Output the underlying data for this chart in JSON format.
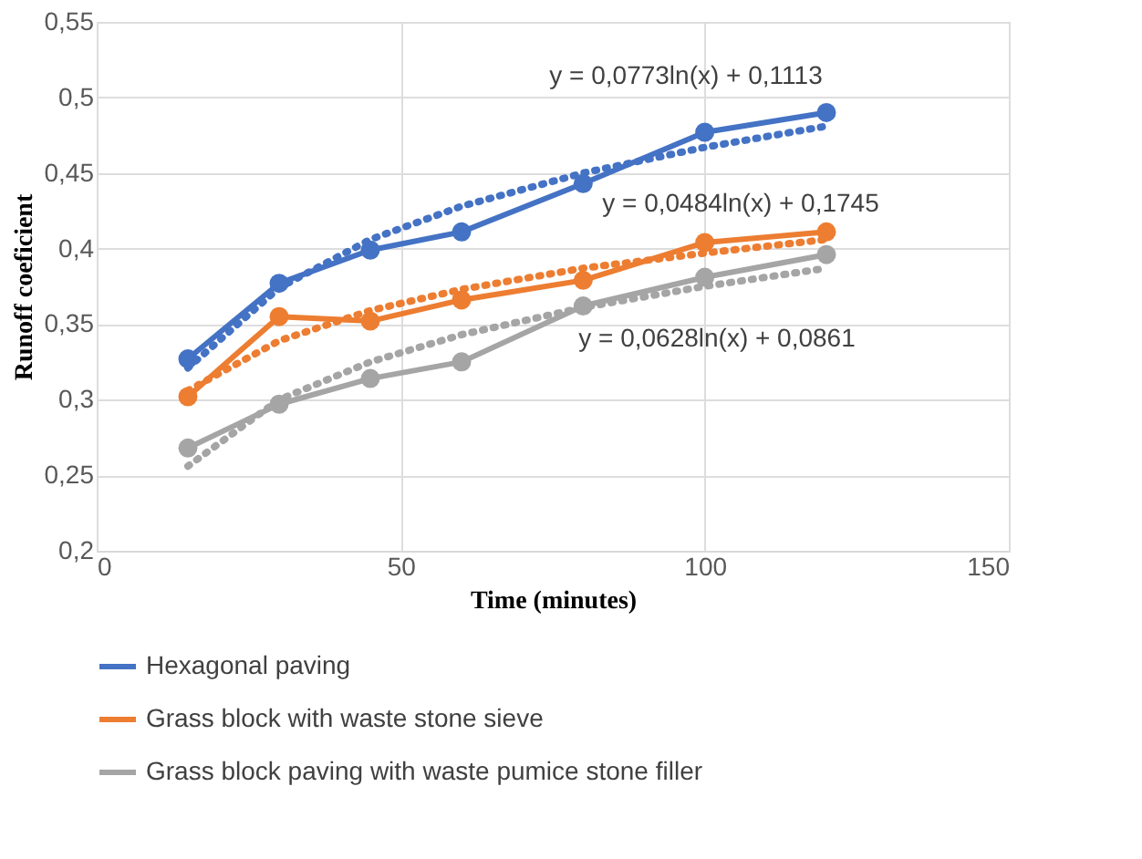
{
  "chart_data": {
    "type": "line",
    "xlabel": "Time  (minutes)",
    "ylabel": "Runoff coeficient",
    "xlim": [
      0,
      150
    ],
    "xticks": [
      0,
      50,
      100,
      150
    ],
    "ylim": [
      0.2,
      0.55
    ],
    "yticks": [
      {
        "value": 0.2,
        "label": "0,2"
      },
      {
        "value": 0.25,
        "label": "0,25"
      },
      {
        "value": 0.3,
        "label": "0,3"
      },
      {
        "value": 0.35,
        "label": "0,35"
      },
      {
        "value": 0.4,
        "label": "0,4"
      },
      {
        "value": 0.45,
        "label": "0,45"
      },
      {
        "value": 0.5,
        "label": "0,5"
      },
      {
        "value": 0.55,
        "label": "0,55"
      }
    ],
    "grid": true,
    "legend": "bottom",
    "series": [
      {
        "name": "Hexagonal paving",
        "color": "#4472c4",
        "marker": "circle",
        "line_style": "solid",
        "x": [
          15,
          30,
          45,
          60,
          80,
          100,
          120
        ],
        "values": [
          0.327,
          0.377,
          0.399,
          0.411,
          0.443,
          0.477,
          0.49
        ]
      },
      {
        "name": "Grass block with waste stone sieve",
        "color": "#ed7d31",
        "marker": "circle",
        "line_style": "solid",
        "x": [
          15,
          30,
          45,
          60,
          80,
          100,
          120
        ],
        "values": [
          0.302,
          0.355,
          0.352,
          0.366,
          0.379,
          0.404,
          0.411
        ]
      },
      {
        "name": "Grass block paving with waste pumice stone filler",
        "color": "#a5a5a5",
        "marker": "circle",
        "line_style": "solid",
        "x": [
          15,
          30,
          45,
          60,
          80,
          100,
          120
        ],
        "values": [
          0.268,
          0.297,
          0.314,
          0.325,
          0.362,
          0.381,
          0.396
        ]
      },
      {
        "color": "#4472c4",
        "marker": "none",
        "line_style": "dotted",
        "x": [
          15,
          30,
          45,
          60,
          80,
          100,
          120
        ],
        "values": [
          0.321,
          0.374,
          0.406,
          0.428,
          0.45,
          0.467,
          0.481
        ]
      },
      {
        "color": "#ed7d31",
        "marker": "none",
        "line_style": "dotted",
        "x": [
          15,
          30,
          45,
          60,
          80,
          100,
          120
        ],
        "values": [
          0.306,
          0.339,
          0.359,
          0.373,
          0.387,
          0.397,
          0.406
        ]
      },
      {
        "color": "#a5a5a5",
        "marker": "none",
        "line_style": "dotted",
        "x": [
          15,
          30,
          45,
          60,
          80,
          100,
          120
        ],
        "values": [
          0.256,
          0.3,
          0.325,
          0.343,
          0.361,
          0.375,
          0.387
        ]
      }
    ],
    "annotations": [
      "y = 0,0773ln(x) + 0,1113",
      "y = 0,0484ln(x) + 0,1745",
      "y = 0,0628ln(x) + 0,0861"
    ]
  }
}
